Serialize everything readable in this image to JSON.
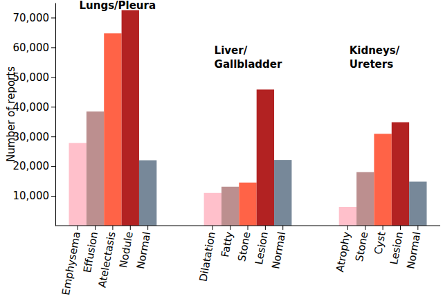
{
  "chart_data": {
    "type": "bar",
    "y_label": "Number of reports",
    "ylim": [
      0,
      75000
    ],
    "yticks": [
      {
        "value": 10000,
        "label": "10,000"
      },
      {
        "value": 20000,
        "label": "20,000"
      },
      {
        "value": 30000,
        "label": "30,000"
      },
      {
        "value": 40000,
        "label": "40,000"
      },
      {
        "value": 50000,
        "label": "50,000"
      },
      {
        "value": 60000,
        "label": "60,000"
      },
      {
        "value": 70000,
        "label": "70,000"
      }
    ],
    "groups": [
      {
        "title": "Lungs/Pleura",
        "categories": [
          "Emphysema",
          "Effusion",
          "Atelectasis",
          "Nodule",
          "Normal"
        ],
        "values": [
          27800,
          38400,
          64700,
          72500,
          22000
        ],
        "colors": [
          "#ffc0cb",
          "#bc8f8f",
          "#ff6347",
          "#b22222",
          "#778899"
        ]
      },
      {
        "title": "Liver/\nGallbladder",
        "categories": [
          "Dilatation",
          "Fatty",
          "Stone",
          "Lesion",
          "Normal"
        ],
        "values": [
          11000,
          13100,
          14500,
          45800,
          22100
        ],
        "colors": [
          "#ffc0cb",
          "#bc8f8f",
          "#ff6347",
          "#b22222",
          "#778899"
        ]
      },
      {
        "title": "Kidneys/\nUreters",
        "categories": [
          "Atrophy",
          "Stone",
          "Cyst",
          "Lesion",
          "Normal"
        ],
        "values": [
          6300,
          18000,
          30900,
          34800,
          14800
        ],
        "colors": [
          "#ffc0cb",
          "#bc8f8f",
          "#ff6347",
          "#b22222",
          "#778899"
        ]
      }
    ]
  }
}
